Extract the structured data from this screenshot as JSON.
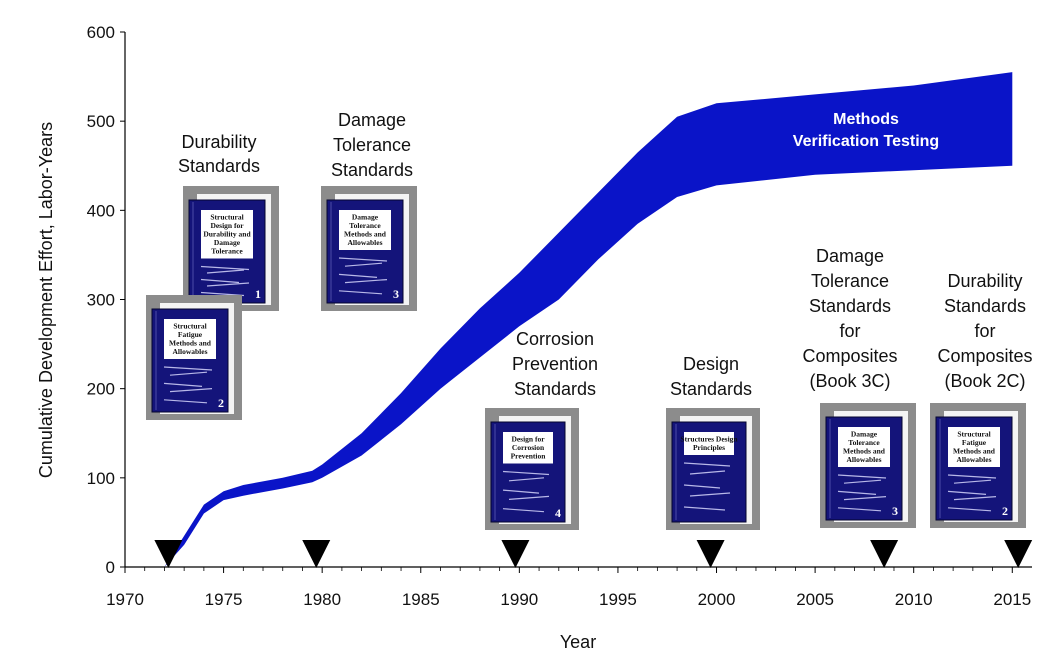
{
  "chart_data": {
    "type": "area",
    "xlabel": "Year",
    "ylabel": "Cumulative Development Effort, Labor-Years",
    "xlim": [
      1970,
      2016
    ],
    "ylim": [
      0,
      600
    ],
    "x_ticks": [
      1970,
      1975,
      1980,
      1985,
      1990,
      1995,
      2000,
      2005,
      2010,
      2015
    ],
    "y_ticks": [
      0,
      100,
      200,
      300,
      400,
      500,
      600
    ],
    "band_color": "#0a14c8",
    "series": [
      {
        "name": "upper",
        "x": [
          1972,
          1973,
          1974,
          1975,
          1976,
          1978,
          1979.5,
          1980,
          1982,
          1984,
          1986,
          1988,
          1990,
          1992,
          1994,
          1996,
          1998,
          2000,
          2005,
          2010,
          2015
        ],
        "y": [
          0,
          35,
          70,
          85,
          92,
          100,
          108,
          115,
          150,
          195,
          245,
          290,
          330,
          375,
          420,
          465,
          505,
          520,
          530,
          540,
          555
        ]
      },
      {
        "name": "lower",
        "x": [
          1972,
          1973,
          1974,
          1975,
          1976,
          1978,
          1979.5,
          1980,
          1982,
          1984,
          1986,
          1988,
          1990,
          1992,
          1994,
          1996,
          1998,
          2000,
          2005,
          2010,
          2015
        ],
        "y": [
          0,
          25,
          60,
          75,
          80,
          88,
          95,
          100,
          125,
          160,
          200,
          235,
          270,
          300,
          345,
          385,
          415,
          428,
          440,
          445,
          450
        ]
      }
    ],
    "milestones": [
      {
        "year": 1972.2,
        "label": "Durability Standards"
      },
      {
        "year": 1979.7,
        "label": "Damage Tolerance Standards"
      },
      {
        "year": 1989.8,
        "label": "Corrosion Prevention Standards"
      },
      {
        "year": 1999.7,
        "label": "Design Standards"
      },
      {
        "year": 2008.5,
        "label": "Damage Tolerance Standards for Composites (Book 3C)"
      },
      {
        "year": 2015.3,
        "label": "Durability Standards for Composites (Book 2C)"
      }
    ],
    "annotation": "Methods Verification Testing"
  },
  "labels": {
    "durability": [
      "Durability",
      "Standards"
    ],
    "damage_tolerance": [
      "Damage",
      "Tolerance",
      "Standards"
    ],
    "corrosion": [
      "Corrosion",
      "Prevention",
      "Standards"
    ],
    "design": [
      "Design",
      "Standards"
    ],
    "dt_composites": [
      "Damage",
      "Tolerance",
      "Standards",
      "for",
      "Composites",
      "(Book 3C)"
    ],
    "dur_composites": [
      "Durability",
      "Standards",
      "for",
      "Composites",
      "(Book 2C)"
    ],
    "mvt": [
      "Methods",
      "Verification Testing"
    ]
  },
  "books": {
    "book1": {
      "title": [
        "Structural",
        "Design for",
        "Durability and",
        "Damage",
        "Tolerance"
      ],
      "number": "1"
    },
    "book2": {
      "title": [
        "Structural",
        "Fatigue",
        "Methods and",
        "Allowables"
      ],
      "number": "2"
    },
    "book3": {
      "title": [
        "Damage",
        "Tolerance",
        "Methods and",
        "Allowables"
      ],
      "number": "3"
    },
    "book4": {
      "title": [
        "Design for",
        "Corrosion",
        "Prevention"
      ],
      "number": "4"
    },
    "book5": {
      "title": [
        "Structures Design",
        "Principles"
      ],
      "number": ""
    },
    "book6": {
      "title": [
        "Damage",
        "Tolerance",
        "Methods and",
        "Allowables"
      ],
      "number": "3"
    },
    "book7": {
      "title": [
        "Structural",
        "Fatigue",
        "Methods and",
        "Allowables"
      ],
      "number": "2"
    }
  }
}
